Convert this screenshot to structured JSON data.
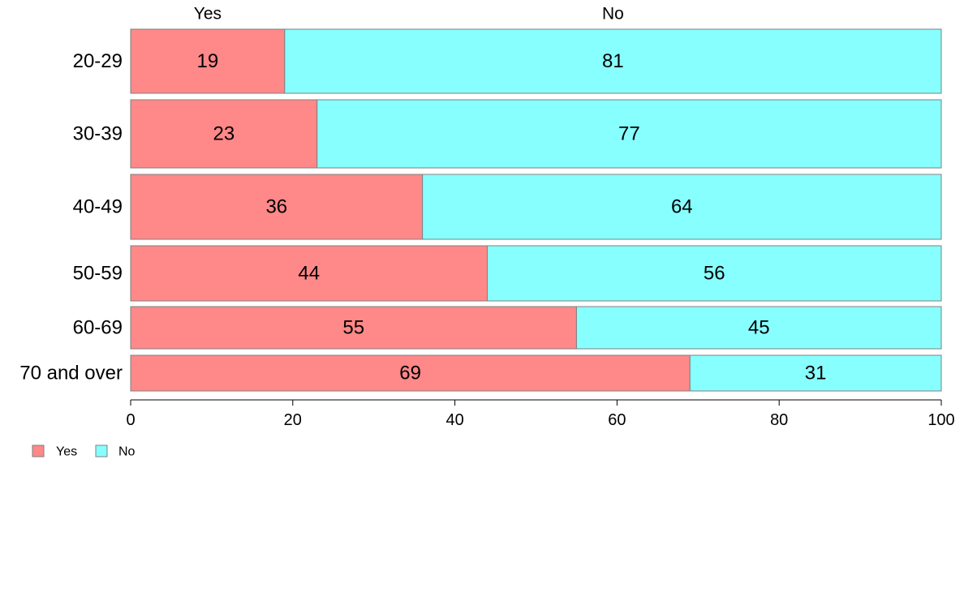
{
  "chart_data": {
    "type": "bar",
    "orientation": "horizontal",
    "stacked": true,
    "title": "",
    "xlabel": "",
    "ylabel": "",
    "categories": [
      "20-29",
      "30-39",
      "40-49",
      "50-59",
      "60-69",
      "70 and over"
    ],
    "series": [
      {
        "name": "Yes",
        "color": "#ff8888",
        "values": [
          19,
          23,
          36,
          44,
          55,
          69
        ],
        "labels": [
          "19",
          "23",
          "36",
          "44",
          "55",
          "69"
        ]
      },
      {
        "name": "No",
        "color": "#88ffff",
        "values": [
          81,
          77,
          64,
          56,
          45,
          31
        ],
        "labels": [
          "81",
          "77",
          "64",
          "56",
          "45",
          "31"
        ]
      }
    ],
    "top_labels": [
      "Yes",
      "No"
    ],
    "xlim": [
      0,
      100
    ],
    "xticks": [
      0,
      20,
      40,
      60,
      80,
      100
    ],
    "xtick_labels": [
      "0",
      "20",
      "40",
      "60",
      "80",
      "100"
    ],
    "grid": false,
    "legend_position": "bottom-left",
    "legend": [
      "Yes",
      "No"
    ]
  }
}
